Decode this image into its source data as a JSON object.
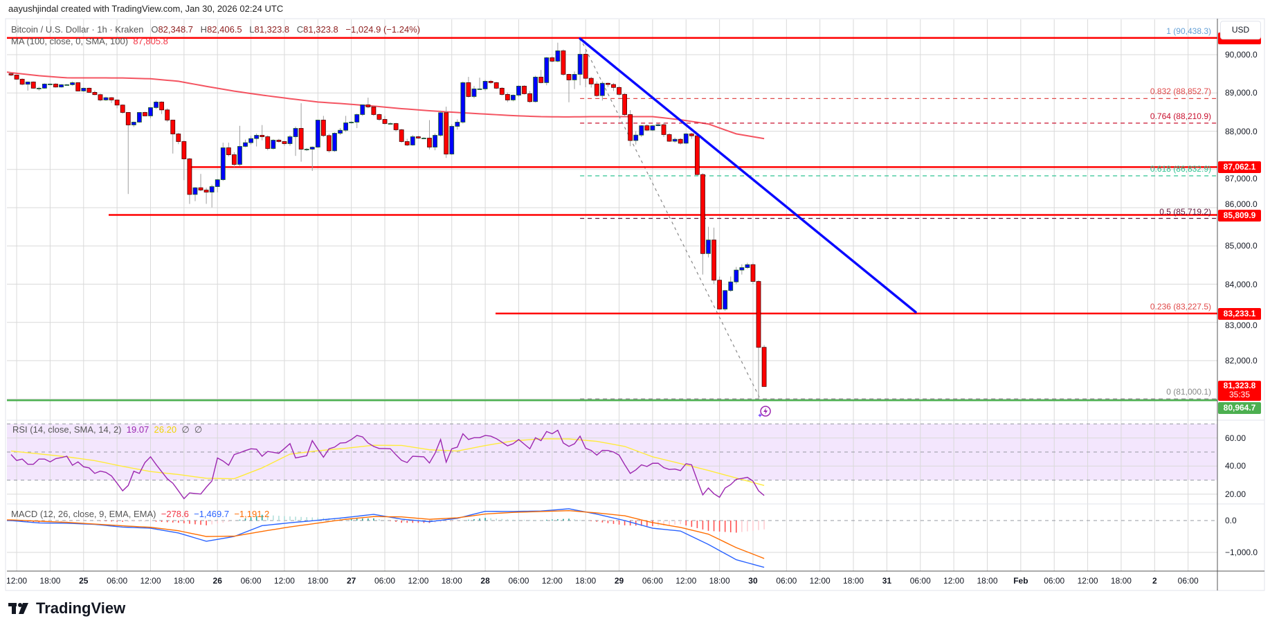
{
  "header": {
    "attribution": "aayushjindal created with TradingView.com, Jan 30, 2026 02:24 UTC"
  },
  "legend": {
    "symbol": "Bitcoin / U.S. Dollar · 1h · Kraken",
    "ohlc": [
      {
        "k": "O",
        "v": "82,348.7"
      },
      {
        "k": "H",
        "v": "82,406.5"
      },
      {
        "k": "L",
        "v": "81,323.8"
      },
      {
        "k": "C",
        "v": "81,323.8"
      }
    ],
    "change": "−1,024.9 (−1.24%)",
    "ma_label": "MA (100, close, 0, SMA, 100)",
    "ma_value": "87,805.8"
  },
  "currency_button": "USD",
  "rsi_legend": {
    "label": "RSI (14, close, SMA, 14, 2)",
    "rsi": "19.07",
    "sma": "26.20",
    "na1": "∅",
    "na2": "∅"
  },
  "macd_legend": {
    "label": "MACD (12, 26, close, 9, EMA, EMA)",
    "hist": "−278.6",
    "macd": "−1,469.7",
    "signal": "−1,191.2"
  },
  "branding": {
    "logo_text": "TradingView"
  },
  "colors": {
    "up": "#0000ff",
    "down": "#ff0000",
    "ma": "#f23645",
    "level": "#ff0000",
    "support": "#4caf50",
    "trendline": "#0a0aff",
    "rsi": "#9c27b0",
    "rsi_sma": "#ffeb3b",
    "rsi_band": "#f3e6fd",
    "macd": "#2962ff",
    "signal": "#ff6d00",
    "hist_up": "#26a69a",
    "hist_up_weak": "#b2dfdb",
    "hist_down": "#ff5252",
    "hist_down_weak": "#ffcdd2"
  },
  "chart_data": {
    "type": "candlestick",
    "interval": "1h",
    "candles_ohlc": [
      [
        89500,
        89530,
        89440,
        89468
      ],
      [
        89468,
        89480,
        89340,
        89360
      ],
      [
        89360,
        89380,
        89200,
        89227
      ],
      [
        89227,
        89300,
        89060,
        89287
      ],
      [
        89287,
        89300,
        89110,
        89124
      ],
      [
        89124,
        89160,
        89060,
        89124
      ],
      [
        89124,
        89250,
        89110,
        89233
      ],
      [
        89233,
        89250,
        89220,
        89233
      ],
      [
        89233,
        89250,
        89140,
        89154
      ],
      [
        89154,
        89230,
        89140,
        89215
      ],
      [
        89215,
        89230,
        89200,
        89215
      ],
      [
        89215,
        89300,
        89190,
        89268
      ],
      [
        89268,
        89280,
        89040,
        89051
      ],
      [
        89051,
        89140,
        89030,
        89124
      ],
      [
        89124,
        89140,
        89000,
        89015
      ],
      [
        89015,
        89060,
        88940,
        88955
      ],
      [
        88955,
        88980,
        88780,
        88816
      ],
      [
        88816,
        88900,
        88790,
        88876
      ],
      [
        88876,
        88890,
        88740,
        88816
      ],
      [
        88816,
        88830,
        88600,
        88683
      ],
      [
        88683,
        88700,
        88460,
        88490
      ],
      [
        88490,
        88500,
        86358,
        88164
      ],
      [
        88164,
        88250,
        88110,
        88236
      ],
      [
        88236,
        88500,
        88220,
        88490
      ],
      [
        88490,
        88510,
        88390,
        88400
      ],
      [
        88400,
        88630,
        88340,
        88617
      ],
      [
        88617,
        88800,
        88580,
        88762
      ],
      [
        88762,
        88780,
        88450,
        88556
      ],
      [
        88556,
        88600,
        88240,
        88290
      ],
      [
        88290,
        88300,
        87415,
        87928
      ],
      [
        87928,
        87960,
        87660,
        87729
      ],
      [
        87729,
        87760,
        86720,
        87276
      ],
      [
        87276,
        87300,
        86098,
        86346
      ],
      [
        86346,
        86540,
        86170,
        86521
      ],
      [
        86521,
        86883,
        86430,
        86460
      ],
      [
        86460,
        86520,
        86100,
        86406
      ],
      [
        86406,
        86600,
        86007,
        86551
      ],
      [
        86551,
        86750,
        86400,
        86732
      ],
      [
        86732,
        87700,
        86700,
        87566
      ],
      [
        87566,
        87700,
        87340,
        87384
      ],
      [
        87384,
        87450,
        87060,
        87131
      ],
      [
        87131,
        88140,
        87080,
        87602
      ],
      [
        87602,
        87780,
        87580,
        87699
      ],
      [
        87699,
        87880,
        87650,
        87807
      ],
      [
        87807,
        87940,
        87600,
        87892
      ],
      [
        87892,
        88160,
        87760,
        87855
      ],
      [
        87855,
        87890,
        87500,
        87547
      ],
      [
        87547,
        87790,
        87520,
        87765
      ],
      [
        87765,
        87800,
        87700,
        87729
      ],
      [
        87729,
        87750,
        87620,
        87674
      ],
      [
        87674,
        87900,
        87620,
        87855
      ],
      [
        87855,
        88120,
        87354,
        88073
      ],
      [
        88073,
        88731,
        87203,
        87529
      ],
      [
        87529,
        87560,
        87480,
        87529
      ],
      [
        87529,
        87600,
        86961,
        87583
      ],
      [
        87583,
        88300,
        87560,
        88290
      ],
      [
        88290,
        88400,
        87850,
        87885
      ],
      [
        87885,
        87930,
        87440,
        87487
      ],
      [
        87487,
        87970,
        87460,
        87946
      ],
      [
        87946,
        88080,
        87900,
        88024
      ],
      [
        88024,
        88400,
        87980,
        88218
      ],
      [
        88218,
        88260,
        88200,
        88236
      ],
      [
        88236,
        88460,
        88080,
        88435
      ],
      [
        88435,
        88700,
        88400,
        88689
      ],
      [
        88689,
        88876,
        88600,
        88634
      ],
      [
        88634,
        88660,
        88400,
        88435
      ],
      [
        88435,
        88460,
        88270,
        88308
      ],
      [
        88308,
        88400,
        88170,
        88200
      ],
      [
        88200,
        88230,
        88180,
        88200
      ],
      [
        88200,
        88220,
        87990,
        88037
      ],
      [
        88037,
        88060,
        87700,
        87729
      ],
      [
        87729,
        87800,
        87610,
        87638
      ],
      [
        87638,
        87900,
        87620,
        87855
      ],
      [
        87855,
        87880,
        87800,
        87819
      ],
      [
        87819,
        87840,
        87800,
        87819
      ],
      [
        87819,
        88290,
        87520,
        87583
      ],
      [
        87583,
        87940,
        87500,
        87892
      ],
      [
        87892,
        88540,
        87860,
        88483
      ],
      [
        88483,
        88640,
        87300,
        87402
      ],
      [
        87402,
        88180,
        87380,
        88127
      ],
      [
        88127,
        88310,
        88040,
        88236
      ],
      [
        88236,
        89300,
        88200,
        89269
      ],
      [
        89269,
        89420,
        88880,
        88906
      ],
      [
        88906,
        89180,
        88860,
        89106
      ],
      [
        89106,
        89400,
        89090,
        89106
      ],
      [
        89106,
        89340,
        89050,
        89305
      ],
      [
        89305,
        89340,
        89240,
        89269
      ],
      [
        89269,
        89290,
        89100,
        89124
      ],
      [
        89124,
        89150,
        88930,
        88961
      ],
      [
        88961,
        89010,
        88760,
        88816
      ],
      [
        88816,
        88960,
        88780,
        88942
      ],
      [
        88942,
        89200,
        88900,
        89178
      ],
      [
        89178,
        89200,
        88960,
        88979
      ],
      [
        88979,
        89050,
        88740,
        88773
      ],
      [
        88773,
        89450,
        88750,
        89414
      ],
      [
        89414,
        89600,
        89250,
        89269
      ],
      [
        89269,
        89940,
        89200,
        89921
      ],
      [
        89921,
        89960,
        89800,
        89830
      ],
      [
        89830,
        90314,
        89800,
        90102
      ],
      [
        90102,
        90140,
        89450,
        89486
      ],
      [
        89486,
        89500,
        88755,
        89341
      ],
      [
        89341,
        89560,
        89100,
        89486
      ],
      [
        89486,
        90438,
        89200,
        90012
      ],
      [
        90012,
        90100,
        89150,
        89382
      ],
      [
        89382,
        89420,
        89140,
        89234
      ],
      [
        89234,
        89300,
        88900,
        88930
      ],
      [
        88930,
        89300,
        88800,
        89253
      ],
      [
        89253,
        89270,
        89150,
        89221
      ],
      [
        89221,
        89260,
        89050,
        89143
      ],
      [
        89143,
        89180,
        88930,
        88963
      ],
      [
        88963,
        89000,
        88380,
        88434
      ],
      [
        88434,
        88550,
        87607,
        87756
      ],
      [
        87756,
        88000,
        87650,
        87898
      ],
      [
        87898,
        88160,
        87850,
        88143
      ],
      [
        88143,
        88180,
        88000,
        88027
      ],
      [
        88027,
        88160,
        88000,
        88143
      ],
      [
        88143,
        88200,
        88130,
        88169
      ],
      [
        88169,
        88220,
        87850,
        87911
      ],
      [
        87911,
        87950,
        87720,
        87737
      ],
      [
        87737,
        87830,
        87700,
        87788
      ],
      [
        87788,
        87820,
        87650,
        87685
      ],
      [
        87685,
        87950,
        87660,
        87930
      ],
      [
        87930,
        87960,
        87800,
        87879
      ],
      [
        87879,
        87900,
        86850,
        86866
      ],
      [
        86866,
        86900,
        84252,
        84800
      ],
      [
        84800,
        85500,
        84700,
        85155
      ],
      [
        85155,
        85478,
        84000,
        84104
      ],
      [
        84104,
        84200,
        83349,
        83349
      ],
      [
        83349,
        83850,
        83300,
        83833
      ],
      [
        83833,
        84200,
        83800,
        84059
      ],
      [
        84059,
        84450,
        84000,
        84369
      ],
      [
        84369,
        84520,
        84250,
        84433
      ],
      [
        84433,
        84560,
        84400,
        84510
      ],
      [
        84510,
        84560,
        84000,
        84071
      ],
      [
        84071,
        84100,
        81000,
        82348
      ],
      [
        82348.7,
        82406.5,
        81323.8,
        81323.8
      ]
    ],
    "ma100_sampled": [
      89530,
      89450,
      89395,
      89393,
      89392,
      89370,
      89305,
      89172,
      89047,
      88943,
      88849,
      88763,
      88713,
      88656,
      88589,
      88535,
      88489,
      88447,
      88407,
      88379,
      88373,
      88381,
      88381,
      88380,
      88299,
      88188,
      87930,
      87805.8
    ],
    "price_axis": {
      "labels": [
        "90,000.0",
        "89,000.0",
        "88,000.0",
        "87,000.0",
        "86,000.0",
        "85,000.0",
        "84,000.0",
        "83,000.0",
        "82,000.0"
      ],
      "values": [
        90000,
        89000,
        88000,
        87000,
        86000,
        85000,
        84000,
        83000,
        82000
      ],
      "range": [
        80443,
        90923
      ]
    },
    "horizontal_levels": [
      {
        "price": 90438.3,
        "label": ""
      },
      {
        "price": 87062.1,
        "label": "87,062.1"
      },
      {
        "price": 85809.9,
        "label": "85,809.9"
      },
      {
        "price": 83233.1,
        "label": "83,233.1"
      }
    ],
    "support_level": {
      "price": 80964.7,
      "label": "80,964.7"
    },
    "last_price": {
      "price": 81323.8,
      "label": "81,323.8",
      "countdown": "35:35"
    },
    "fib_levels": [
      {
        "ratio": "1",
        "price": 90438.3,
        "text": "1 (90,438.3)",
        "color": "#64a0d6"
      },
      {
        "ratio": "0.832",
        "price": 88852.7,
        "text": "0.832 (88,852.7)",
        "color": "#e04848"
      },
      {
        "ratio": "0.764",
        "price": 88210.9,
        "text": "0.764 (88,210.9)",
        "color": "#c8102e"
      },
      {
        "ratio": "0.618",
        "price": 86832.9,
        "text": "0.618 (86,832.9)",
        "color": "#2ec492"
      },
      {
        "ratio": "0.5",
        "price": 85719.2,
        "text": "0.5 (85,719.2)",
        "color": "#5b1538"
      },
      {
        "ratio": "0.236",
        "price": 83227.5,
        "text": "0.236 (83,227.5)",
        "color": "#e04848"
      },
      {
        "ratio": "0",
        "price": 81000.1,
        "text": "0 (81,000.1)",
        "color": "#888888"
      }
    ],
    "trendline": {
      "from_price": 90438.3,
      "to_price": 83233.1
    },
    "time_axis": {
      "labels": [
        "12:00",
        "18:00",
        "25",
        "06:00",
        "12:00",
        "18:00",
        "26",
        "06:00",
        "12:00",
        "18:00",
        "27",
        "06:00",
        "12:00",
        "18:00",
        "28",
        "06:00",
        "12:00",
        "18:00",
        "29",
        "06:00",
        "12:00",
        "18:00",
        "30",
        "06:00",
        "12:00",
        "18:00",
        "31",
        "06:00",
        "12:00",
        "18:00",
        "Feb",
        "06:00",
        "12:00",
        "18:00",
        "2",
        "06:00"
      ]
    },
    "rsi": {
      "values": [
        48.2,
        44,
        45,
        41.3,
        41.3,
        45,
        45,
        43,
        45.3,
        46,
        47,
        40.6,
        43,
        39.5,
        38.7,
        34.8,
        36.4,
        35.5,
        33,
        27.8,
        22.4,
        26.2,
        36.3,
        34.8,
        42.5,
        46.6,
        41.1,
        36,
        31,
        27.8,
        22.4,
        16.8,
        20.9,
        20.5,
        20.1,
        25,
        29.4,
        45.8,
        43.6,
        40.6,
        48.2,
        49.5,
        51,
        52.3,
        52,
        47,
        50.4,
        49.8,
        49.1,
        52.5,
        56,
        45.8,
        46.6,
        47.4,
        58.1,
        52,
        46.3,
        52.3,
        53.5,
        56.4,
        56.7,
        58.9,
        61.8,
        60.8,
        56.4,
        54,
        52.5,
        52.5,
        52.3,
        48,
        44.1,
        42.5,
        47,
        46.8,
        46.6,
        42.2,
        49.1,
        58.9,
        42.8,
        52.3,
        53.5,
        63,
        58.9,
        60.2,
        60.2,
        61.8,
        61.3,
        59.5,
        57,
        54.4,
        55.9,
        58.9,
        55.6,
        52.3,
        60.2,
        58.1,
        64.6,
        63,
        65.5,
        56.4,
        54,
        55.9,
        61.3,
        52.7,
        51.1,
        47.8,
        51.2,
        51.1,
        50,
        47.8,
        41,
        34.8,
        37.3,
        40.9,
        39.7,
        42,
        42,
        38.9,
        37.6,
        37.9,
        36.8,
        41.7,
        40.9,
        30,
        19.5,
        24.4,
        20.3,
        17.8,
        24.4,
        26.8,
        30.6,
        31.2,
        32,
        29.3,
        22.4,
        19.07
      ],
      "sma_sampled": [
        50.7,
        48.7,
        46.6,
        43.9,
        39.8,
        36.1,
        34,
        31.3,
        31,
        38.7,
        48.5,
        50.9,
        52.7,
        54.8,
        54.7,
        51.6,
        50.7,
        54.6,
        57.9,
        59.4,
        59.3,
        57.6,
        54,
        46.6,
        41.8,
        36.9,
        31.5,
        26.2
      ],
      "band": [
        30,
        70
      ],
      "midline": 50,
      "axis_labels": [
        "60.00",
        "40.00",
        "20.00"
      ],
      "axis_values": [
        60,
        40,
        20
      ]
    },
    "macd": {
      "macd_sampled": [
        0,
        -75,
        -85,
        -120,
        -205,
        -240,
        -390,
        -650,
        -500,
        -160,
        -70,
        10,
        95,
        195,
        45,
        -35,
        70,
        290,
        285,
        300,
        370,
        203,
        0,
        -240,
        -330,
        -750,
        -1230,
        -1469.7
      ],
      "signal_sampled": [
        20,
        -20,
        -57,
        -110,
        -165,
        -212,
        -320,
        -500,
        -490,
        -340,
        -200,
        -80,
        40,
        125,
        115,
        40,
        85,
        205,
        257,
        283,
        311,
        240,
        150,
        -65,
        -215,
        -427,
        -850,
        -1191.2
      ],
      "axis_labels": [
        "0.0",
        "−1,000.0"
      ],
      "axis_values": [
        0,
        -1000
      ]
    }
  }
}
